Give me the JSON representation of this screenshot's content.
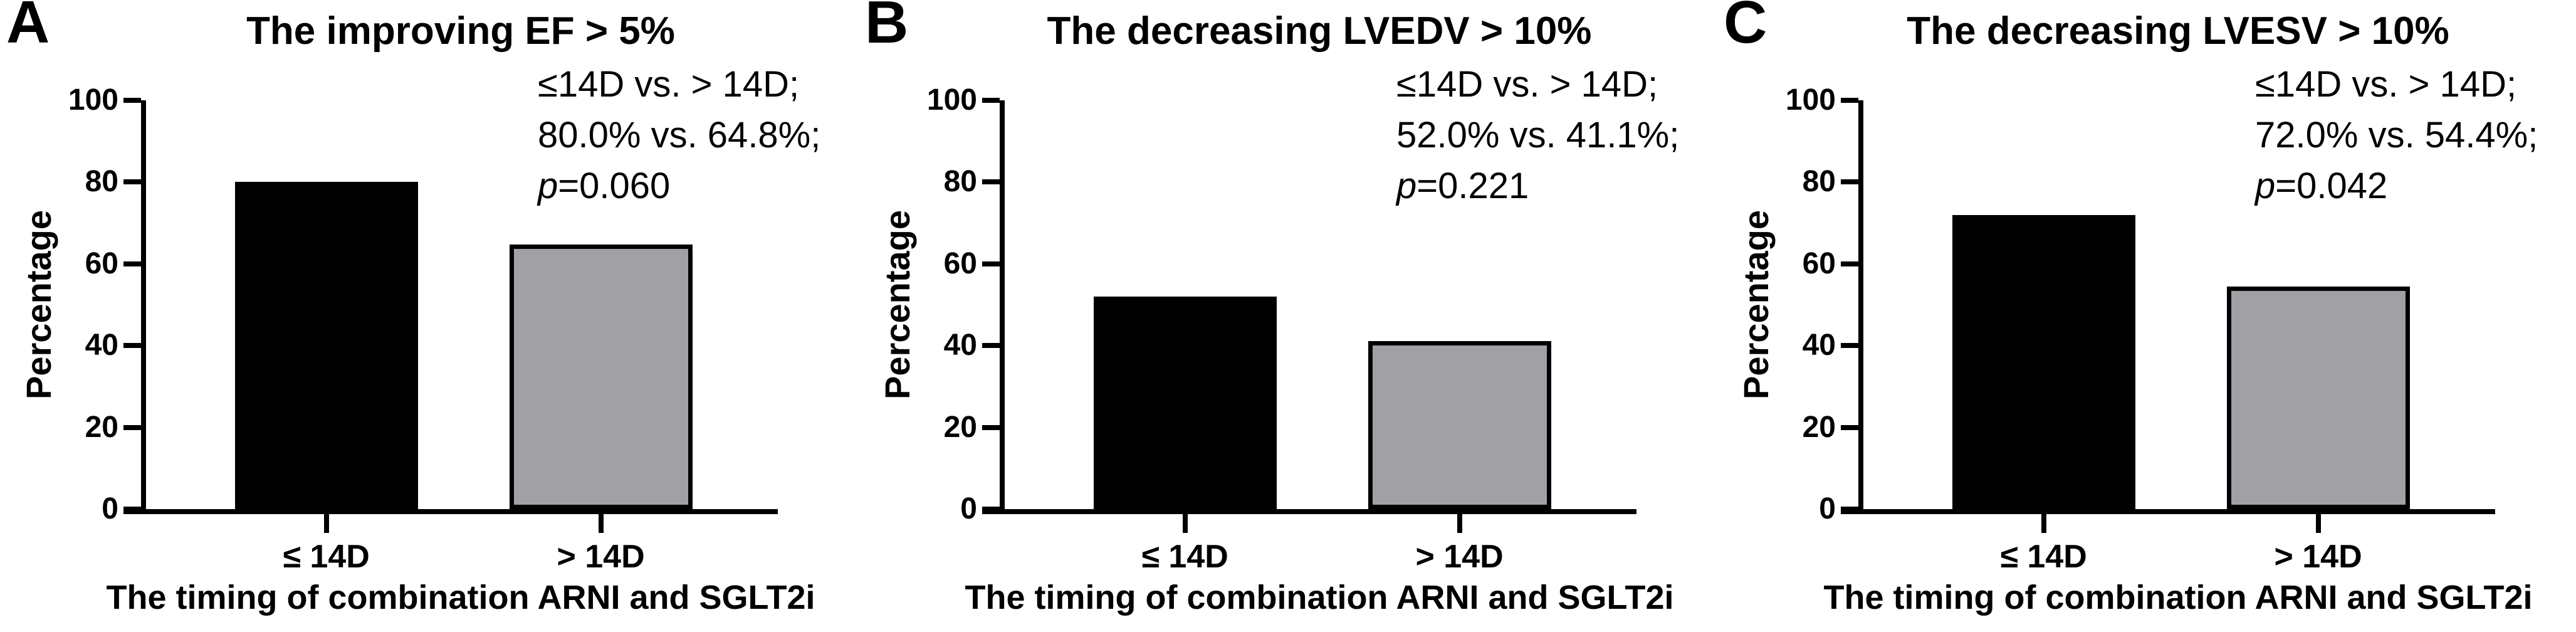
{
  "figure": {
    "background": "#ffffff",
    "bar_border_color": "#000000"
  },
  "chart_data": [
    {
      "type": "bar",
      "letter": "A",
      "title": "The improving EF > 5%",
      "categories": [
        "≤ 14D",
        "> 14D"
      ],
      "values": [
        80.0,
        64.8
      ],
      "bar_colors": [
        "#000000",
        "#a0a0a5"
      ],
      "ylabel": "Percentage",
      "xlabel": "The timing of combination ARNI and SGLT2i",
      "ylim": [
        0,
        100
      ],
      "yticks": [
        0,
        20,
        40,
        60,
        80,
        100
      ],
      "grid": false,
      "annotation": {
        "line1": "≤14D vs. > 14D;",
        "line2": "80.0% vs. 64.8%;",
        "p_symbol": "p",
        "p_rest": "=0.060"
      }
    },
    {
      "type": "bar",
      "letter": "B",
      "title": "The decreasing LVEDV > 10%",
      "categories": [
        "≤ 14D",
        "> 14D"
      ],
      "values": [
        52.0,
        41.1
      ],
      "bar_colors": [
        "#000000",
        "#a0a0a5"
      ],
      "ylabel": "Percentage",
      "xlabel": "The timing of combination ARNI and SGLT2i",
      "ylim": [
        0,
        100
      ],
      "yticks": [
        0,
        20,
        40,
        60,
        80,
        100
      ],
      "grid": false,
      "annotation": {
        "line1": "≤14D vs. > 14D;",
        "line2": "52.0% vs. 41.1%;",
        "p_symbol": "p",
        "p_rest": "=0.221"
      }
    },
    {
      "type": "bar",
      "letter": "C",
      "title": "The decreasing LVESV > 10%",
      "categories": [
        "≤ 14D",
        "> 14D"
      ],
      "values": [
        72.0,
        54.4
      ],
      "bar_colors": [
        "#000000",
        "#a0a0a5"
      ],
      "ylabel": "Percentage",
      "xlabel": "The timing of combination ARNI and SGLT2i",
      "ylim": [
        0,
        100
      ],
      "yticks": [
        0,
        20,
        40,
        60,
        80,
        100
      ],
      "grid": false,
      "annotation": {
        "line1": "≤14D vs. > 14D;",
        "line2": "72.0% vs. 54.4%;",
        "p_symbol": "p",
        "p_rest": "=0.042"
      }
    }
  ]
}
